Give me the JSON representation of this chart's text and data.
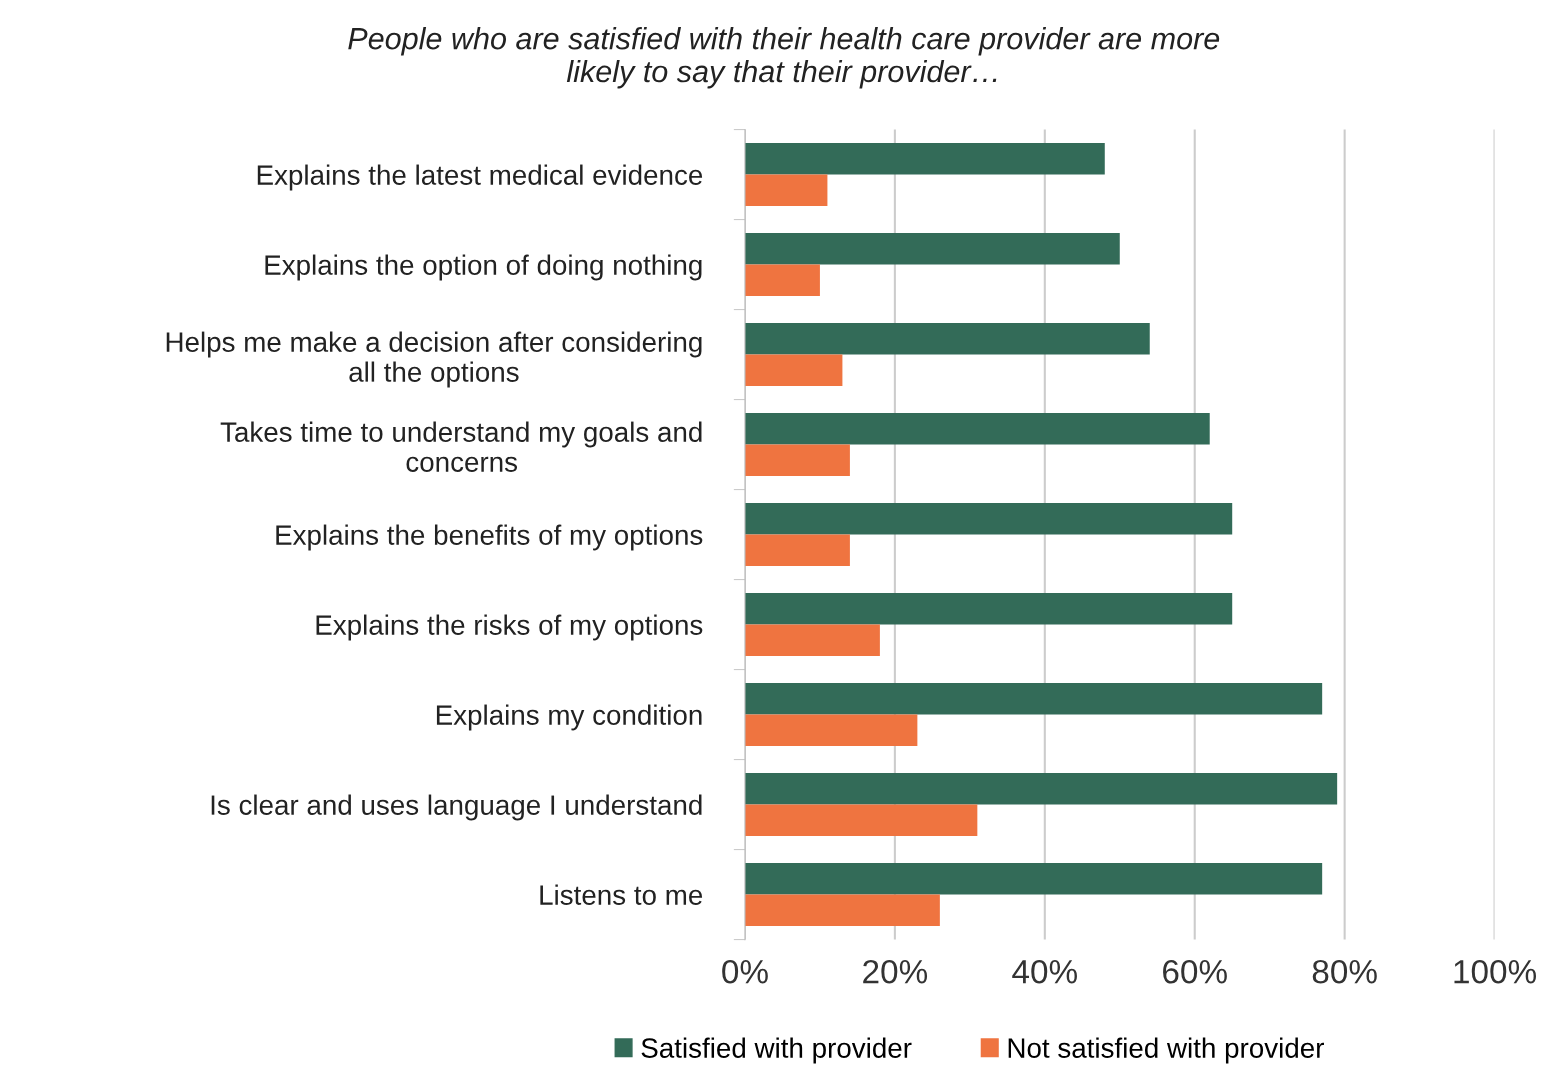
{
  "chart_data": {
    "type": "bar",
    "orientation": "horizontal",
    "title": "People who are satisfied with their health care provider are more\nlikely to say that their provider…",
    "categories": [
      "Explains the latest medical evidence",
      "Explains the option of doing nothing",
      "Helps me make a decision after considering\nall the options",
      "Takes time to understand my goals and\nconcerns",
      "Explains the benefits of my options",
      "Explains the risks of my options",
      "Explains my condition",
      "Is clear and uses language I understand",
      "Listens to me"
    ],
    "series": [
      {
        "name": "Satisfied with provider",
        "color": "#336b58",
        "values": [
          48,
          50,
          54,
          62,
          65,
          65,
          77,
          79,
          77
        ]
      },
      {
        "name": "Not satisfied with provider",
        "color": "#ef7440",
        "values": [
          11,
          10,
          13,
          14,
          14,
          18,
          23,
          31,
          26
        ]
      }
    ],
    "xlim": [
      0,
      100
    ],
    "xticks": [
      {
        "value": 0,
        "label": "0%"
      },
      {
        "value": 20,
        "label": "20%"
      },
      {
        "value": 40,
        "label": "40%"
      },
      {
        "value": 60,
        "label": "60%"
      },
      {
        "value": 80,
        "label": "80%"
      },
      {
        "value": 100,
        "label": "100%"
      }
    ],
    "grid": "x",
    "legend": "bottom"
  }
}
